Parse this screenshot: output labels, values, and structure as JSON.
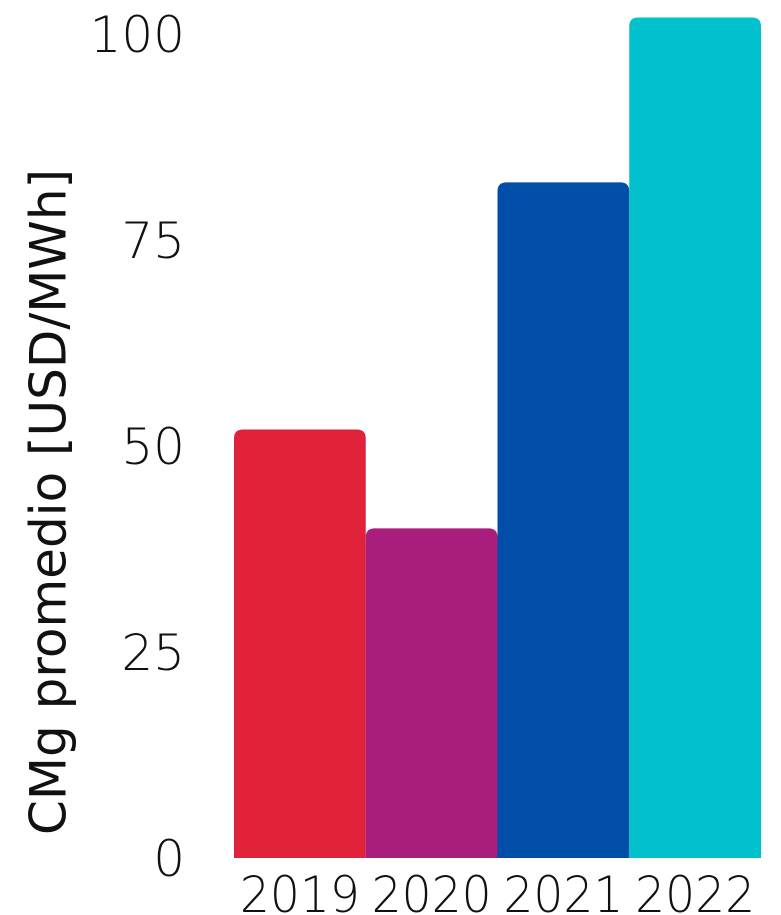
{
  "chart_data": {
    "type": "bar",
    "title": "",
    "xlabel": "",
    "ylabel": "CMg promedio [USD/MWh]",
    "categories": [
      "2019",
      "2020",
      "2021",
      "2022"
    ],
    "values": [
      52,
      40,
      82,
      102
    ],
    "bar_colors": [
      "#e0223b",
      "#a91e7c",
      "#004ea8",
      "#00c1cc"
    ],
    "ylim": [
      0,
      104
    ],
    "yticks": [
      0,
      25,
      50,
      75,
      100
    ],
    "ytick_labels": [
      "0",
      "25",
      "50",
      "75",
      "100"
    ],
    "grid": false,
    "legend": "none"
  }
}
